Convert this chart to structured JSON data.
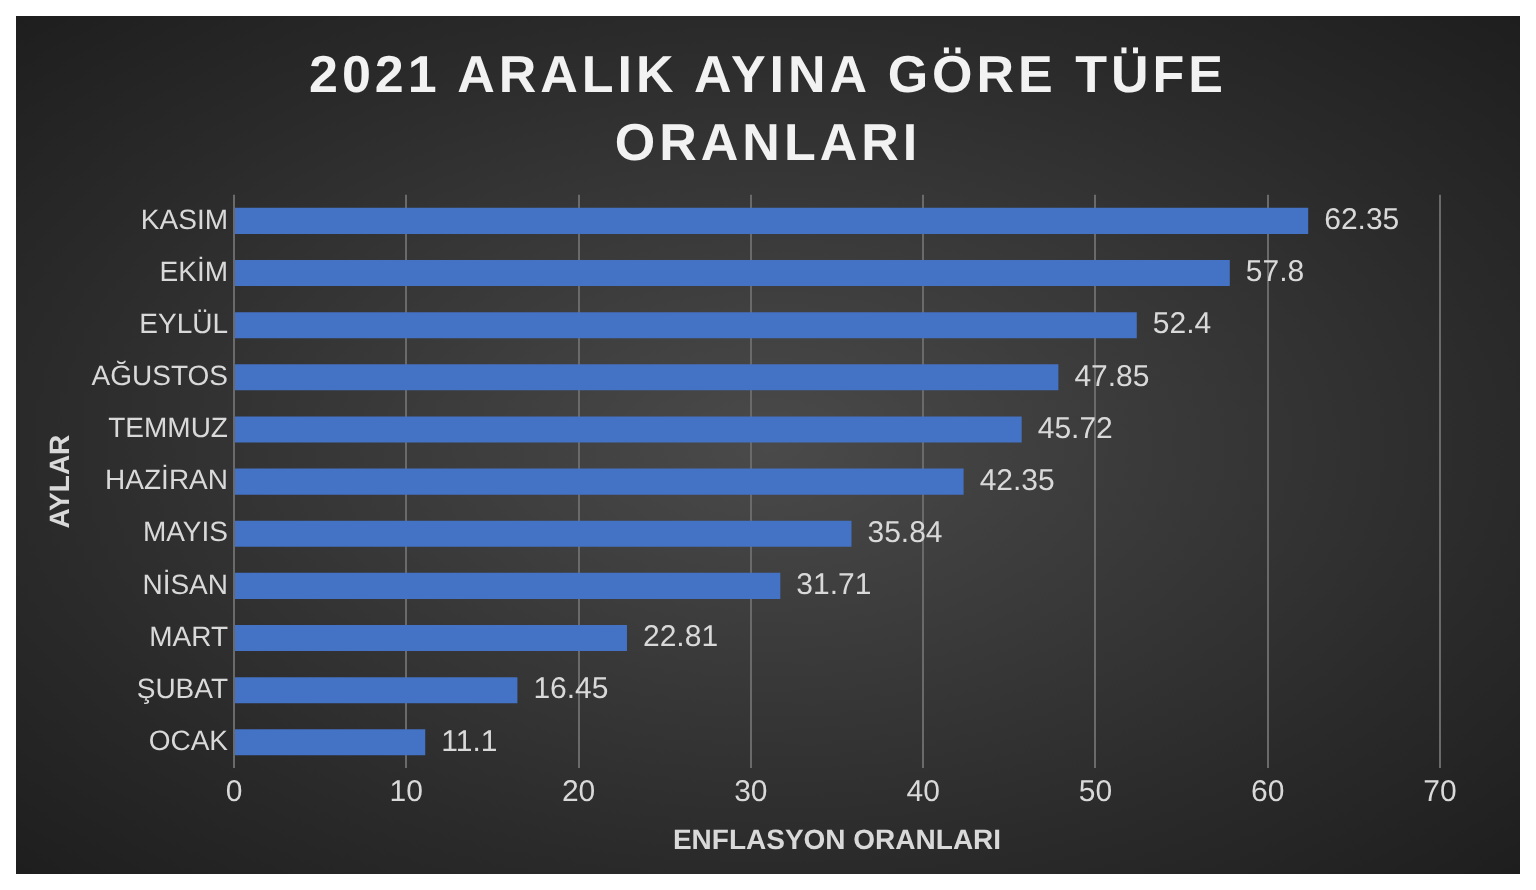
{
  "chart_data": {
    "type": "bar",
    "orientation": "horizontal",
    "title": "2021 ARALIK AYINA GÖRE TÜFE ORANLARI",
    "xlabel": "ENFLASYON ORANLARI",
    "ylabel": "AYLAR",
    "categories": [
      "KASIM",
      "EKİM",
      "EYLÜL",
      "AĞUSTOS",
      "TEMMUZ",
      "HAZİRAN",
      "MAYIS",
      "NİSAN",
      "MART",
      "ŞUBAT",
      "OCAK"
    ],
    "values": [
      62.35,
      57.8,
      52.4,
      47.85,
      45.72,
      42.35,
      35.84,
      31.71,
      22.81,
      16.45,
      11.1
    ],
    "color": "#4472c4",
    "xlim": [
      0,
      70
    ],
    "xticks": [
      0,
      10,
      20,
      30,
      40,
      50,
      60,
      70
    ],
    "grid": "x",
    "data_labels": true,
    "legend": false
  }
}
